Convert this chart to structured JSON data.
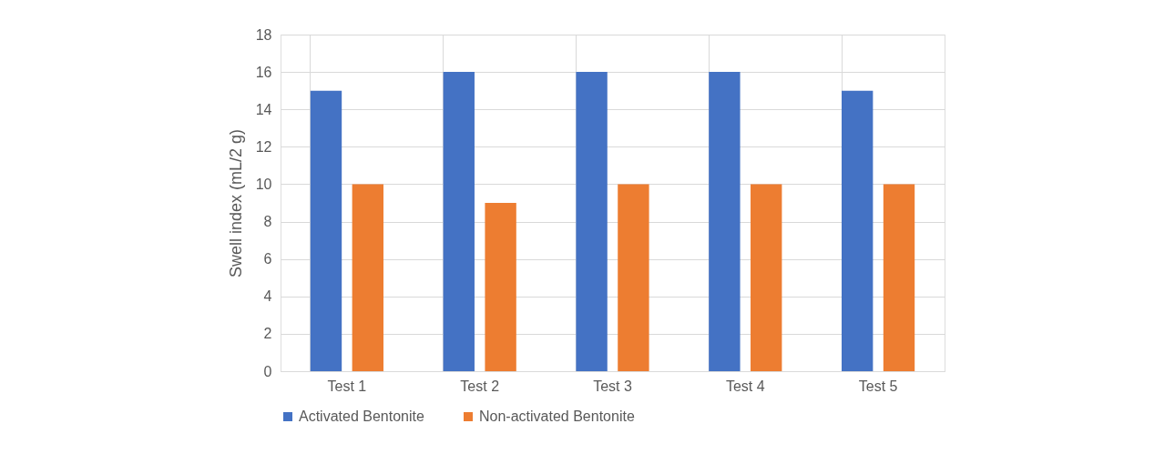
{
  "chart_data": {
    "type": "bar",
    "ylabel": "Swell index (mL/2 g)",
    "categories": [
      "Test 1",
      "Test 2",
      "Test 3",
      "Test 4",
      "Test 5"
    ],
    "series": [
      {
        "name": "Activated Bentonite",
        "color": "#4472c4",
        "values": [
          15,
          16,
          16,
          16,
          15
        ]
      },
      {
        "name": "Non-activated Bentonite",
        "color": "#ed7d31",
        "values": [
          10,
          9,
          10,
          10,
          10
        ]
      }
    ],
    "ylim": [
      0,
      18
    ],
    "yticks": [
      0,
      2,
      4,
      6,
      8,
      10,
      12,
      14,
      16,
      18
    ],
    "grid": true,
    "legend": "bottom"
  }
}
